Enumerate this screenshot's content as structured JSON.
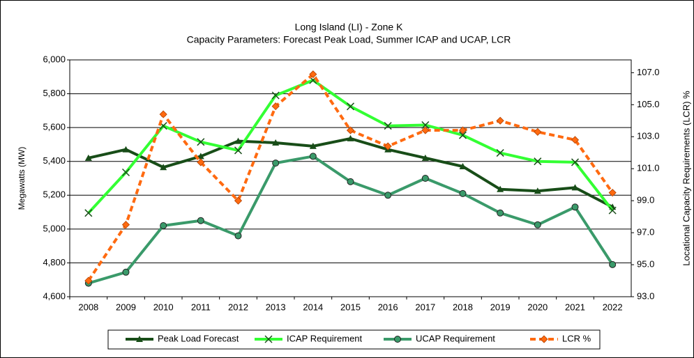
{
  "chart_data": {
    "type": "line",
    "title": "Long Island (LI) - Zone K",
    "subtitle": "Capacity Parameters: Forecast Peak Load, Summer ICAP and UCAP, LCR",
    "y_label": "Megawatts  (MW)",
    "y2_label": "Locational Capacity Requirements (LCR) %",
    "categories": [
      "2008",
      "2009",
      "2010",
      "2011",
      "2012",
      "2013",
      "2014",
      "2015",
      "2016",
      "2017",
      "2018",
      "2019",
      "2020",
      "2021",
      "2022"
    ],
    "ylim": [
      4600,
      6000
    ],
    "yticks": [
      {
        "value": 4600,
        "label": "4,600"
      },
      {
        "value": 4800,
        "label": "4,800"
      },
      {
        "value": 5000,
        "label": "5,000"
      },
      {
        "value": 5200,
        "label": "5,200"
      },
      {
        "value": 5400,
        "label": "5,400"
      },
      {
        "value": 5600,
        "label": "5,600"
      },
      {
        "value": 5800,
        "label": "5,800"
      },
      {
        "value": 6000,
        "label": "6,000"
      }
    ],
    "y2lim": [
      93,
      107.8
    ],
    "y2ticks": [
      {
        "value": 93,
        "label": "93.0"
      },
      {
        "value": 95,
        "label": "95.0"
      },
      {
        "value": 97,
        "label": "97.0"
      },
      {
        "value": 99,
        "label": "99.0"
      },
      {
        "value": 101,
        "label": "101.0"
      },
      {
        "value": 103,
        "label": "103.0"
      },
      {
        "value": 105,
        "label": "105.0"
      },
      {
        "value": 107,
        "label": "107.0"
      }
    ],
    "grid": true,
    "legend": "bottom",
    "series": [
      {
        "name": "Peak Load Forecast",
        "color": "#184d18",
        "marker": "triangle",
        "values": [
          5420,
          5470,
          5365,
          5430,
          5520,
          5510,
          5490,
          5535,
          5470,
          5420,
          5370,
          5235,
          5225,
          5245,
          5130
        ]
      },
      {
        "name": "ICAP Requirement",
        "color": "#33ff33",
        "marker": "x",
        "values": [
          5095,
          5335,
          5610,
          5515,
          5465,
          5790,
          5880,
          5725,
          5610,
          5615,
          5555,
          5450,
          5400,
          5395,
          5110
        ]
      },
      {
        "name": "UCAP Requirement",
        "color": "#3a9a6a",
        "marker": "circle",
        "values": [
          4680,
          4745,
          5020,
          5050,
          4960,
          5390,
          5430,
          5280,
          5200,
          5300,
          5210,
          5095,
          5025,
          5130,
          4790
        ]
      },
      {
        "name": "LCR %",
        "color": "#ff6a10",
        "marker": "diamond",
        "dashed": true,
        "axis": "y2",
        "values": [
          94.0,
          97.5,
          104.4,
          101.4,
          99.0,
          104.9,
          106.9,
          103.4,
          102.4,
          103.4,
          103.4,
          104.0,
          103.3,
          102.8,
          99.5
        ]
      }
    ]
  }
}
